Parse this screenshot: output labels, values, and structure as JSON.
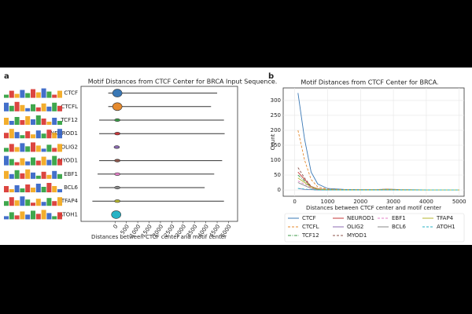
{
  "chart_data": [
    {
      "type": "violin",
      "panel": "a",
      "title": "Motif Distances from CTCF Center for BRCA Input Sequence.",
      "x_label": "Distances between CTCF center and motif center",
      "categories": [
        "CTCF",
        "CTCFL",
        "TCF12",
        "NEUROD1",
        "OLIG2",
        "MYOD1",
        "EBF1",
        "BCL6",
        "TFAP4",
        "ATOH1"
      ],
      "colors": [
        "#3a78b5",
        "#e58a2e",
        "#3b9a47",
        "#c6373a",
        "#8c6bb1",
        "#8c564b",
        "#e07fc4",
        "#8a8a8a",
        "#b5b52f",
        "#27b3c5"
      ],
      "values": [
        {
          "min": -300,
          "median": 100,
          "max": 4500
        },
        {
          "min": -300,
          "median": 100,
          "max": 4230
        },
        {
          "min": -700,
          "median": 100,
          "max": 4800
        },
        {
          "min": -700,
          "median": 100,
          "max": 4830
        },
        {
          "min": 50,
          "median": 75,
          "max": 100
        },
        {
          "min": -700,
          "median": 100,
          "max": 4720
        },
        {
          "min": -770,
          "median": 100,
          "max": 4370
        },
        {
          "min": -700,
          "median": 100,
          "max": 3950
        },
        {
          "min": -1000,
          "median": 100,
          "max": 4800
        },
        {
          "min": -100,
          "median": 50,
          "max": 200
        }
      ],
      "xlim": [
        -1500,
        5400
      ],
      "xticks": [
        0,
        500,
        1000,
        1500,
        2000,
        2500,
        3000,
        3500,
        4000,
        4500,
        5000
      ]
    },
    {
      "type": "line",
      "panel": "b",
      "title": "Motif Distances from CTCF Center for BRCA.",
      "x_label": "Distances between CTCF center and motif center",
      "y_label": "Count",
      "x": [
        100,
        300,
        500,
        700,
        1000,
        1500,
        2000,
        2500,
        2800,
        3200,
        4000,
        5000
      ],
      "series": [
        {
          "name": "CTCF",
          "color": "#3a78b5",
          "dash": "solid",
          "values": [
            325,
            170,
            60,
            20,
            5,
            2,
            1,
            1,
            3,
            1,
            0,
            0
          ]
        },
        {
          "name": "CTCFL",
          "color": "#e58a2e",
          "dash": "dashed",
          "values": [
            200,
            100,
            35,
            10,
            3,
            1,
            1,
            1,
            3,
            1,
            0,
            0
          ]
        },
        {
          "name": "TCF12",
          "color": "#3b9a47",
          "dash": "dashdot",
          "values": [
            50,
            30,
            10,
            3,
            1,
            0,
            0,
            0,
            2,
            0,
            0,
            0
          ]
        },
        {
          "name": "NEUROD1",
          "color": "#c6373a",
          "dash": "solid",
          "values": [
            60,
            35,
            12,
            4,
            1,
            0,
            0,
            0,
            2,
            0,
            0,
            0
          ]
        },
        {
          "name": "OLIG2",
          "color": "#8c6bb1",
          "dash": "solid",
          "values": [
            5,
            2,
            1,
            0,
            0,
            0,
            0,
            0,
            0,
            0,
            0,
            0
          ]
        },
        {
          "name": "MYOD1",
          "color": "#8c564b",
          "dash": "dashed",
          "values": [
            75,
            40,
            12,
            4,
            1,
            0,
            0,
            0,
            2,
            0,
            0,
            0
          ]
        },
        {
          "name": "EBF1",
          "color": "#e07fc4",
          "dash": "dashed",
          "values": [
            30,
            20,
            8,
            2,
            1,
            0,
            0,
            0,
            1,
            0,
            0,
            0
          ]
        },
        {
          "name": "BCL6",
          "color": "#8a8a8a",
          "dash": "solid",
          "values": [
            25,
            15,
            5,
            2,
            0,
            0,
            0,
            0,
            1,
            0,
            0,
            0
          ]
        },
        {
          "name": "TFAP4",
          "color": "#b5b52f",
          "dash": "solid",
          "values": [
            40,
            25,
            10,
            3,
            1,
            0,
            0,
            0,
            1,
            0,
            0,
            0
          ]
        },
        {
          "name": "ATOH1",
          "color": "#27b3c5",
          "dash": "dashed",
          "values": [
            5,
            3,
            1,
            0,
            0,
            0,
            0,
            0,
            0,
            0,
            0,
            0
          ]
        }
      ],
      "xlim": [
        -350,
        5150
      ],
      "xticks": [
        0,
        1000,
        2000,
        3000,
        4000,
        5000
      ],
      "ylim": [
        -21,
        342
      ],
      "yticks": [
        0,
        50,
        100,
        150,
        200,
        250,
        300
      ],
      "grid": true
    }
  ]
}
